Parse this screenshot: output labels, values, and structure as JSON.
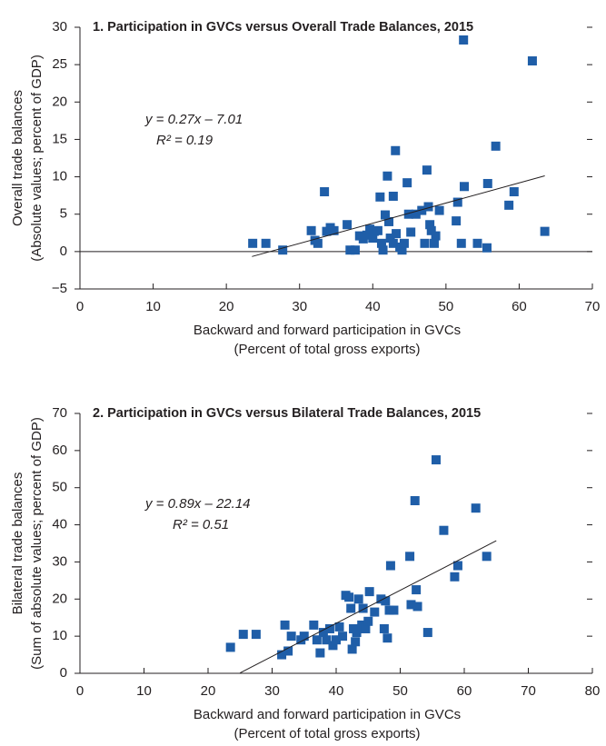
{
  "chart_data": [
    {
      "type": "scatter",
      "title": "1. Participation in GVCs versus Overall Trade Balances, 2015",
      "xlabel": [
        "Backward and forward participation in GVCs",
        "(Percent of total gross exports)"
      ],
      "ylabel": [
        "Overall trade balances",
        "(Absolute values; percent of GDP)"
      ],
      "equation": "y = 0.27x – 7.01",
      "r2": "R² = 0.19",
      "fit": {
        "slope": 0.27,
        "intercept": -7.01,
        "xrange": [
          23.5,
          63.5
        ]
      },
      "xlim": [
        0,
        70
      ],
      "xticks": [
        0,
        10,
        20,
        30,
        40,
        50,
        60,
        70
      ],
      "ylim": [
        -5,
        30
      ],
      "yticks": [
        {
          "value": -5,
          "label": "−5"
        },
        0,
        5,
        10,
        15,
        20,
        25,
        30
      ],
      "zero_line": true,
      "series": [
        {
          "color": "#1f5ea8",
          "x": [
            23.6,
            25.4,
            27.7,
            31.6,
            32.1,
            32.5,
            33.4,
            33.7,
            34.2,
            34.7,
            36.5,
            36.9,
            37.6,
            38.2,
            38.7,
            39.2,
            39.6,
            40.0,
            40.2,
            40.7,
            41.0,
            41.2,
            41.4,
            41.7,
            42.0,
            42.2,
            42.4,
            42.8,
            42.8,
            43.1,
            43.2,
            43.7,
            44.0,
            44.3,
            44.7,
            44.9,
            45.2,
            45.9,
            46.7,
            47.1,
            47.4,
            47.6,
            47.8,
            48.0,
            48.4,
            48.6,
            49.1,
            51.4,
            51.6,
            52.1,
            52.4,
            52.5,
            54.3,
            55.6,
            55.7,
            56.8,
            58.6,
            59.3,
            61.8,
            63.5
          ],
          "y": [
            1.1,
            1.1,
            0.2,
            2.8,
            1.5,
            1.1,
            8.0,
            2.7,
            3.2,
            2.8,
            3.6,
            0.2,
            0.2,
            2.1,
            1.7,
            2.2,
            3.0,
            1.8,
            2.7,
            2.8,
            7.3,
            1.1,
            0.2,
            4.9,
            10.1,
            4.0,
            1.8,
            7.4,
            1.1,
            13.5,
            2.4,
            0.6,
            0.2,
            1.1,
            9.2,
            5.0,
            2.6,
            5.0,
            5.5,
            1.1,
            10.9,
            6.0,
            3.6,
            2.8,
            1.1,
            2.1,
            5.5,
            4.1,
            6.6,
            1.1,
            28.3,
            8.7,
            1.1,
            0.5,
            9.1,
            14.1,
            6.2,
            8.0,
            25.5,
            2.7
          ]
        }
      ]
    },
    {
      "type": "scatter",
      "title": "2. Participation in GVCs versus Bilateral Trade Balances, 2015",
      "xlabel": [
        "Backward and forward participation in GVCs",
        "(Percent of total gross exports)"
      ],
      "ylabel": [
        "Bilateral trade balances",
        "(Sum of absolute values; percent of GDP)"
      ],
      "equation": "y = 0.89x – 22.14",
      "r2": "R² = 0.51",
      "fit": {
        "slope": 0.89,
        "intercept": -22.14,
        "xrange": [
          25,
          65
        ]
      },
      "xlim": [
        0,
        80
      ],
      "xticks": [
        0,
        10,
        20,
        30,
        40,
        50,
        60,
        70,
        80
      ],
      "ylim": [
        0,
        70
      ],
      "yticks": [
        0,
        10,
        20,
        30,
        40,
        50,
        60,
        70
      ],
      "zero_line": false,
      "series": [
        {
          "color": "#1f5ea8",
          "x": [
            23.5,
            25.5,
            27.5,
            31.5,
            32,
            32.5,
            33,
            34.5,
            35,
            36.5,
            37,
            37.5,
            38,
            38.5,
            39,
            39.5,
            40,
            40.5,
            41,
            41.5,
            42,
            42.3,
            42.5,
            42.7,
            43,
            43.2,
            43.5,
            44,
            44.2,
            44.6,
            45,
            45.2,
            46,
            47,
            47.5,
            47.7,
            48,
            48.3,
            48.5,
            49,
            51.5,
            51.7,
            52.3,
            52.5,
            52.7,
            54.3,
            55.6,
            56.8,
            58.5,
            59,
            61.8,
            63.5
          ],
          "y": [
            7,
            10.5,
            10.5,
            5,
            13,
            6,
            10,
            9,
            10,
            13,
            9,
            5.5,
            11,
            9,
            12,
            7.5,
            9,
            12.5,
            10,
            21,
            20.5,
            17.5,
            6.5,
            12,
            8.5,
            11,
            20,
            13,
            17.5,
            12,
            14,
            22,
            16.5,
            20,
            12,
            19.5,
            9.5,
            17,
            29,
            17,
            31.5,
            18.5,
            46.5,
            22.5,
            18,
            11,
            57.5,
            38.5,
            26,
            29,
            44.5,
            31.5
          ]
        }
      ]
    }
  ]
}
